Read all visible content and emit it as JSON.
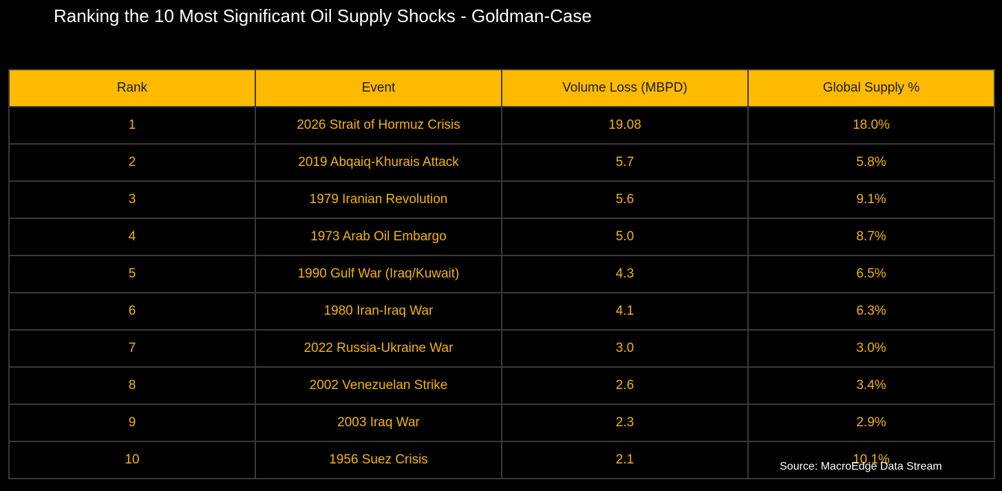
{
  "title": "Ranking the 10 Most Significant Oil Supply Shocks - Goldman-Case",
  "source": "Source: MacroEdge Data Stream",
  "colors": {
    "background": "#000000",
    "header_fill": "#fdba00",
    "header_text": "#1a1a1a",
    "cell_text": "#f4b400",
    "grid": "#3a3a3a",
    "title_text": "#ffffff"
  },
  "chart_data": {
    "type": "table",
    "title": "Ranking the 10 Most Significant Oil Supply Shocks - Goldman-Case",
    "columns": [
      "Rank",
      "Event",
      "Volume Loss (MBPD)",
      "Global Supply %"
    ],
    "rows": [
      {
        "rank": "1",
        "event": "2026 Strait of Hormuz Crisis",
        "volume": "19.08",
        "supply": "18.0%"
      },
      {
        "rank": "2",
        "event": "2019 Abqaiq-Khurais Attack",
        "volume": "5.7",
        "supply": "5.8%"
      },
      {
        "rank": "3",
        "event": "1979 Iranian Revolution",
        "volume": "5.6",
        "supply": "9.1%"
      },
      {
        "rank": "4",
        "event": "1973 Arab Oil Embargo",
        "volume": "5.0",
        "supply": "8.7%"
      },
      {
        "rank": "5",
        "event": "1990 Gulf War (Iraq/Kuwait)",
        "volume": "4.3",
        "supply": "6.5%"
      },
      {
        "rank": "6",
        "event": "1980 Iran-Iraq War",
        "volume": "4.1",
        "supply": "6.3%"
      },
      {
        "rank": "7",
        "event": "2022 Russia-Ukraine War",
        "volume": "3.0",
        "supply": "3.0%"
      },
      {
        "rank": "8",
        "event": "2002 Venezuelan Strike",
        "volume": "2.6",
        "supply": "3.4%"
      },
      {
        "rank": "9",
        "event": "2003 Iraq War",
        "volume": "2.3",
        "supply": "2.9%"
      },
      {
        "rank": "10",
        "event": "1956 Suez Crisis",
        "volume": "2.1",
        "supply": "10.1%"
      }
    ]
  }
}
